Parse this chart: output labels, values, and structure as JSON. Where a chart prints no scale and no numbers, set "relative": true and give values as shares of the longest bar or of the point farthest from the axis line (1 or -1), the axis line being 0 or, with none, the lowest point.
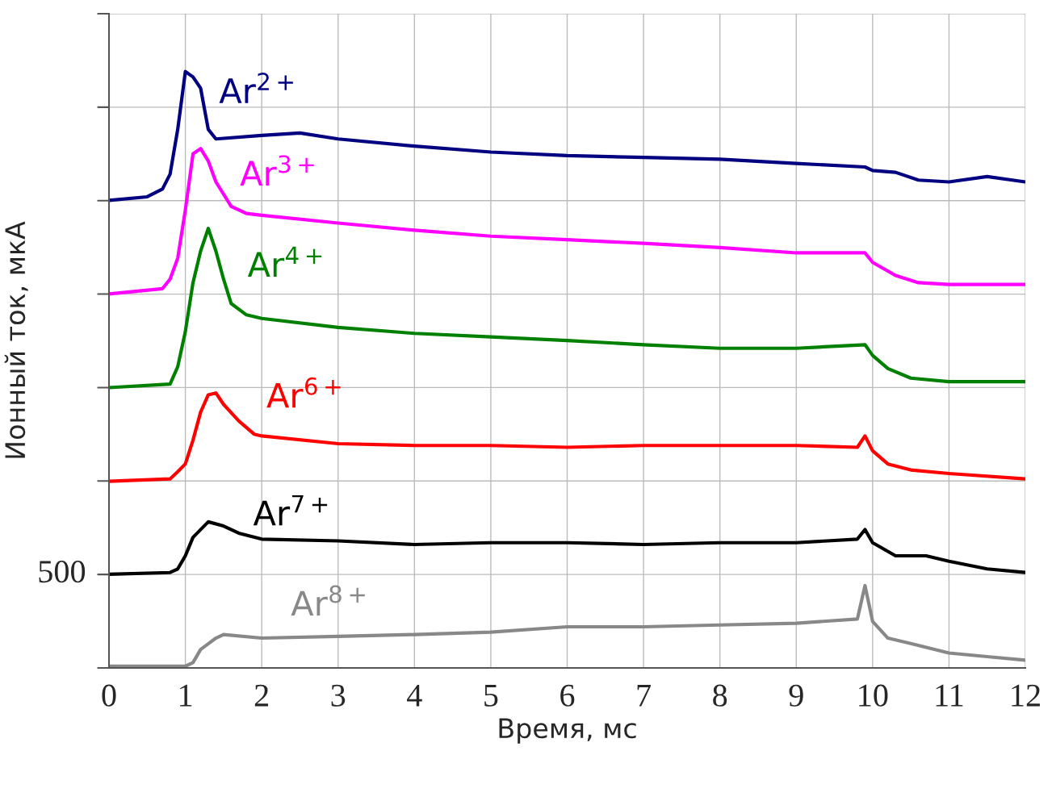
{
  "chart_data": {
    "type": "line",
    "xlabel": "Время, мс",
    "ylabel": "Ионный ток, мкА",
    "relative": true,
    "xlim": [
      0,
      12
    ],
    "xticks": [
      0,
      1,
      2,
      3,
      4,
      5,
      6,
      7,
      8,
      9,
      10,
      11,
      12
    ],
    "annotations": [
      "500"
    ],
    "grid": true,
    "legend": false,
    "marker": "none",
    "line_style": "solid",
    "series": [
      {
        "name": "Ar$^{2+}$",
        "color": "#000080",
        "x": [
          0,
          0.5,
          0.7,
          0.8,
          0.9,
          1.0,
          1.1,
          1.2,
          1.3,
          1.4,
          2,
          2.5,
          3,
          4,
          5,
          6,
          7,
          8,
          9,
          9.9,
          10.0,
          10.3,
          10.6,
          11,
          11.5,
          12
        ],
        "values": [
          0.784,
          0.79,
          0.803,
          0.828,
          0.903,
          1,
          0.991,
          0.972,
          0.903,
          0.887,
          0.893,
          0.897,
          0.887,
          0.875,
          0.865,
          0.859,
          0.856,
          0.853,
          0.846,
          0.84,
          0.834,
          0.831,
          0.818,
          0.815,
          0.824,
          0.815
        ]
      },
      {
        "name": "Ar$^{3+}$",
        "color": "#ff00ff",
        "x": [
          0,
          0.7,
          0.8,
          0.9,
          1.0,
          1.1,
          1.2,
          1.3,
          1.4,
          1.6,
          1.8,
          2,
          3,
          4,
          5,
          6,
          7,
          8,
          9,
          9.9,
          10,
          10.3,
          10.6,
          11,
          12
        ],
        "values": [
          0.627,
          0.636,
          0.652,
          0.687,
          0.768,
          0.862,
          0.871,
          0.85,
          0.815,
          0.774,
          0.762,
          0.759,
          0.746,
          0.734,
          0.724,
          0.718,
          0.712,
          0.705,
          0.696,
          0.696,
          0.68,
          0.658,
          0.646,
          0.643,
          0.643
        ]
      },
      {
        "name": "Ar$^{4+}$",
        "color": "#008000",
        "x": [
          0,
          0.8,
          0.9,
          1.0,
          1.1,
          1.2,
          1.3,
          1.4,
          1.5,
          1.6,
          1.8,
          2,
          3,
          4,
          5,
          6,
          7,
          8,
          9,
          9.9,
          10,
          10.2,
          10.5,
          11,
          12
        ],
        "values": [
          0.47,
          0.476,
          0.505,
          0.564,
          0.646,
          0.699,
          0.737,
          0.699,
          0.652,
          0.611,
          0.592,
          0.586,
          0.571,
          0.561,
          0.555,
          0.549,
          0.542,
          0.536,
          0.536,
          0.542,
          0.524,
          0.502,
          0.486,
          0.48,
          0.48
        ]
      },
      {
        "name": "Ar$^{6+}$",
        "color": "#ff0000",
        "x": [
          0,
          0.8,
          0.9,
          1.0,
          1.1,
          1.2,
          1.3,
          1.4,
          1.5,
          1.7,
          1.9,
          2,
          3,
          4,
          5,
          6,
          7,
          8,
          9,
          9.8,
          9.9,
          10,
          10.2,
          10.5,
          11,
          12
        ],
        "values": [
          0.313,
          0.317,
          0.329,
          0.342,
          0.382,
          0.429,
          0.458,
          0.461,
          0.442,
          0.414,
          0.392,
          0.389,
          0.376,
          0.373,
          0.373,
          0.37,
          0.373,
          0.373,
          0.373,
          0.37,
          0.389,
          0.364,
          0.342,
          0.332,
          0.326,
          0.317
        ]
      },
      {
        "name": "Ar$^{7+}$",
        "color": "#000000",
        "x": [
          0,
          0.8,
          0.9,
          1.0,
          1.1,
          1.3,
          1.5,
          1.7,
          2,
          3,
          4,
          5,
          6,
          7,
          8,
          9,
          9.8,
          9.9,
          10,
          10.3,
          10.7,
          11,
          11.5,
          12
        ],
        "values": [
          0.157,
          0.16,
          0.166,
          0.188,
          0.219,
          0.245,
          0.238,
          0.226,
          0.216,
          0.213,
          0.207,
          0.21,
          0.21,
          0.207,
          0.21,
          0.21,
          0.216,
          0.232,
          0.21,
          0.188,
          0.188,
          0.179,
          0.166,
          0.16
        ]
      },
      {
        "name": "Ar$^{8+}$",
        "color": "#888888",
        "x": [
          0,
          1.0,
          1.1,
          1.2,
          1.4,
          1.5,
          2,
          3,
          4,
          5,
          6,
          7,
          8,
          9,
          9.8,
          9.9,
          10,
          10.2,
          10.5,
          11,
          11.5,
          12
        ],
        "values": [
          0.003,
          0.003,
          0.009,
          0.031,
          0.05,
          0.056,
          0.05,
          0.053,
          0.056,
          0.06,
          0.069,
          0.069,
          0.072,
          0.075,
          0.082,
          0.138,
          0.078,
          0.05,
          0.041,
          0.025,
          0.019,
          0.013
        ]
      }
    ]
  }
}
